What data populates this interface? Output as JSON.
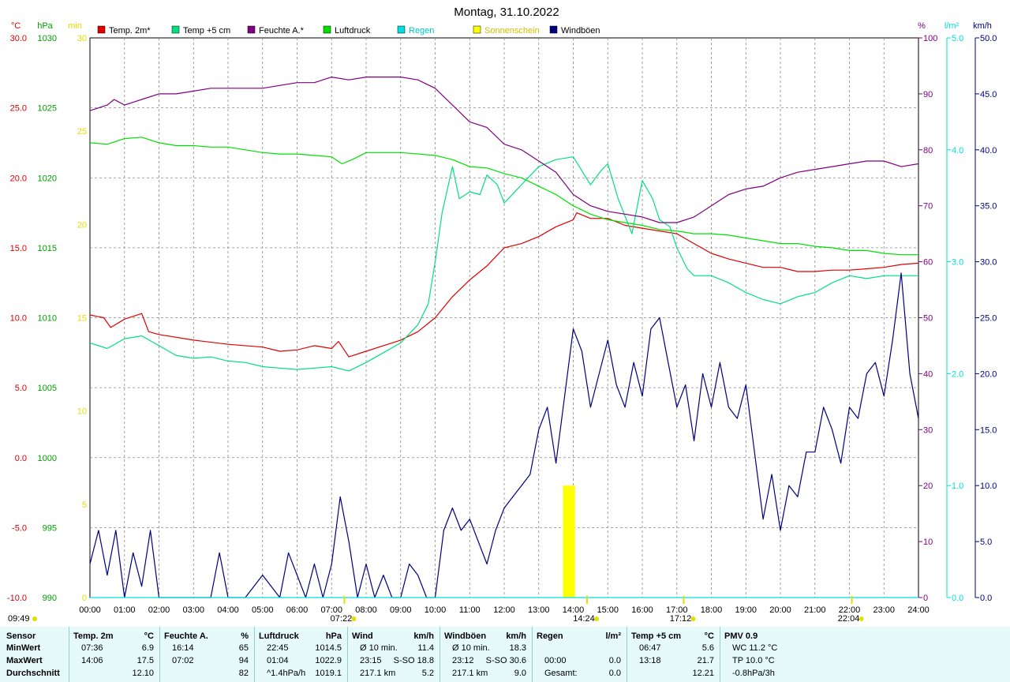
{
  "chart_data": {
    "type": "line",
    "title": "Montag, 31.10.2022",
    "x_ticks": [
      "00:00",
      "01:00",
      "02:00",
      "03:00",
      "04:00",
      "05:00",
      "06:00",
      "07:00",
      "08:00",
      "09:00",
      "10:00",
      "11:00",
      "12:00",
      "13:00",
      "14:00",
      "15:00",
      "16:00",
      "17:00",
      "18:00",
      "19:00",
      "20:00",
      "21:00",
      "22:00",
      "23:00",
      "24:00"
    ],
    "xlim": [
      0,
      24
    ],
    "axes": {
      "temp": {
        "unit": "°C",
        "range": [
          -10,
          30
        ],
        "ticks": [
          "30.0",
          "25.0",
          "20.0",
          "15.0",
          "10.0",
          "5.0",
          "0.0",
          "-5.0",
          "-10.0"
        ],
        "color": "#e00000"
      },
      "pressure": {
        "unit": "hPa",
        "range": [
          990,
          1030
        ],
        "ticks": [
          "1030",
          "1025",
          "1020",
          "1015",
          "1010",
          "1005",
          "1000",
          "995",
          "990"
        ],
        "color": "#00a000"
      },
      "sun": {
        "unit": "min",
        "range": [
          0,
          30
        ],
        "ticks": [
          "30",
          "25",
          "20",
          "15",
          "10",
          "5",
          "0"
        ],
        "color": "#e0e000"
      },
      "humidity": {
        "unit": "%",
        "range": [
          0,
          100
        ],
        "ticks": [
          "100",
          "90",
          "80",
          "70",
          "60",
          "50",
          "40",
          "30",
          "20",
          "10",
          "0"
        ],
        "color": "#800080"
      },
      "rain": {
        "unit": "l/m²",
        "range": [
          0,
          5
        ],
        "ticks": [
          "5.0",
          "4.0",
          "3.0",
          "2.0",
          "1.0",
          "0.0"
        ],
        "color": "#00e0e0"
      },
      "wind": {
        "unit": "km/h",
        "range": [
          0,
          50
        ],
        "ticks": [
          "50.0",
          "45.0",
          "40.0",
          "35.0",
          "30.0",
          "25.0",
          "20.0",
          "15.0",
          "10.0",
          "5.0",
          "0.0"
        ],
        "color": "#000080"
      }
    },
    "legend": [
      {
        "name": "Temp. 2m*",
        "color": "#e00000"
      },
      {
        "name": "Temp +5 cm",
        "color": "#00e080"
      },
      {
        "name": "Feuchte A.*",
        "color": "#800080"
      },
      {
        "name": "Luftdruck",
        "color": "#00e000"
      },
      {
        "name": "Regen",
        "color": "#00e0e0"
      },
      {
        "name": "Sonnenschein",
        "color": "#ffff00"
      },
      {
        "name": "Windböen",
        "color": "#000080"
      }
    ],
    "series": [
      {
        "name": "Temp. 2m*",
        "axis": "temp",
        "color": "#e00000",
        "x": [
          0,
          0.4,
          0.6,
          1.0,
          1.5,
          1.7,
          2.0,
          3.0,
          4.0,
          5.0,
          5.5,
          6.0,
          6.5,
          7.0,
          7.2,
          7.5,
          8.0,
          8.5,
          9.0,
          9.5,
          10.0,
          10.5,
          11.0,
          11.5,
          12.0,
          12.5,
          13.0,
          13.5,
          14.0,
          14.1,
          14.5,
          15.0,
          15.5,
          16.0,
          16.5,
          17.0,
          17.5,
          18.0,
          18.5,
          19.0,
          19.5,
          20.0,
          20.5,
          21.0,
          21.5,
          22.0,
          22.5,
          23.0,
          23.5,
          24.0
        ],
        "y": [
          10.2,
          10.0,
          9.3,
          9.9,
          10.3,
          9.0,
          8.8,
          8.4,
          8.1,
          7.9,
          7.6,
          7.7,
          8.0,
          7.8,
          8.3,
          7.2,
          7.6,
          8.0,
          8.4,
          9.0,
          10.0,
          11.5,
          12.7,
          13.7,
          15.0,
          15.3,
          15.8,
          16.5,
          17.0,
          17.5,
          17.1,
          17.1,
          16.6,
          16.4,
          16.2,
          16.0,
          15.3,
          14.6,
          14.2,
          13.9,
          13.6,
          13.6,
          13.3,
          13.3,
          13.4,
          13.4,
          13.5,
          13.6,
          13.8,
          13.9
        ]
      },
      {
        "name": "Temp +5 cm",
        "axis": "temp",
        "color": "#00e080",
        "x": [
          0,
          0.5,
          1.0,
          1.5,
          2.0,
          2.5,
          3.0,
          3.5,
          4.0,
          4.5,
          5.0,
          5.5,
          6.0,
          6.5,
          7.0,
          7.5,
          8.0,
          8.5,
          9.0,
          9.5,
          9.8,
          10.0,
          10.2,
          10.5,
          10.7,
          11.0,
          11.3,
          11.5,
          11.8,
          12.0,
          12.5,
          13.0,
          13.5,
          14.0,
          14.5,
          14.8,
          15.0,
          15.3,
          15.7,
          16.0,
          16.3,
          16.5,
          16.8,
          17.0,
          17.3,
          17.5,
          18.0,
          18.5,
          19.0,
          19.5,
          20.0,
          20.5,
          21.0,
          21.5,
          22.0,
          22.5,
          23.0,
          23.5,
          24.0
        ],
        "y": [
          8.2,
          7.8,
          8.5,
          8.7,
          8.0,
          7.3,
          7.1,
          7.2,
          6.9,
          6.8,
          6.5,
          6.4,
          6.3,
          6.4,
          6.5,
          6.2,
          6.8,
          7.5,
          8.2,
          9.5,
          11.0,
          14.0,
          17.5,
          20.8,
          18.5,
          19.0,
          18.8,
          20.2,
          19.5,
          18.2,
          19.5,
          20.8,
          21.3,
          21.5,
          19.5,
          20.5,
          21.0,
          18.5,
          16.0,
          19.8,
          18.5,
          17.0,
          16.5,
          15.0,
          13.5,
          13.0,
          13.0,
          12.5,
          11.8,
          11.3,
          11.0,
          11.5,
          11.8,
          12.5,
          13.0,
          12.8,
          13.0,
          13.0,
          13.0
        ]
      },
      {
        "name": "Feuchte A.*",
        "axis": "humidity",
        "color": "#800080",
        "x": [
          0,
          0.5,
          0.7,
          1.0,
          1.5,
          2.0,
          2.5,
          3.0,
          3.5,
          4.0,
          5.0,
          6.0,
          6.5,
          7.0,
          7.5,
          8.0,
          9.0,
          9.5,
          10.0,
          10.5,
          11.0,
          11.5,
          12.0,
          12.5,
          13.0,
          13.5,
          14.0,
          14.5,
          15.0,
          15.5,
          16.0,
          16.5,
          17.0,
          17.5,
          18.0,
          18.5,
          19.0,
          19.5,
          20.0,
          20.5,
          21.0,
          21.5,
          22.0,
          22.5,
          23.0,
          23.5,
          24.0
        ],
        "y": [
          87,
          88,
          89,
          88,
          89,
          90,
          90,
          90.5,
          91,
          91,
          91,
          92,
          92,
          93,
          92.5,
          93,
          93,
          92.5,
          91,
          88,
          85,
          84,
          81,
          80,
          78,
          76,
          72,
          70,
          69,
          68.5,
          68,
          67,
          67,
          68,
          70,
          72,
          73,
          73.5,
          75,
          76,
          76.5,
          77,
          77.5,
          78,
          78,
          77,
          77.5
        ]
      },
      {
        "name": "Luftdruck",
        "axis": "pressure",
        "color": "#00e000",
        "x": [
          0,
          0.5,
          1.0,
          1.5,
          2.0,
          2.5,
          3.0,
          3.5,
          4.0,
          4.5,
          5.0,
          5.5,
          6.0,
          6.5,
          7.0,
          7.3,
          7.6,
          8.0,
          9.0,
          10.0,
          10.5,
          11.0,
          11.5,
          12.0,
          12.5,
          13.0,
          13.5,
          14.0,
          14.5,
          15.0,
          15.5,
          16.0,
          16.5,
          17.0,
          17.5,
          18.0,
          18.5,
          19.0,
          19.5,
          20.0,
          20.5,
          21.0,
          21.5,
          22.0,
          22.5,
          23.0,
          23.5,
          24.0
        ],
        "y": [
          1022.5,
          1022.4,
          1022.8,
          1022.9,
          1022.5,
          1022.3,
          1022.3,
          1022.2,
          1022.2,
          1022.0,
          1021.8,
          1021.7,
          1021.7,
          1021.6,
          1021.5,
          1021.0,
          1021.3,
          1021.8,
          1021.8,
          1021.6,
          1021.3,
          1020.8,
          1020.7,
          1020.3,
          1020.0,
          1019.4,
          1018.8,
          1018.0,
          1017.4,
          1017.0,
          1016.8,
          1016.6,
          1016.3,
          1016.2,
          1016.0,
          1016.0,
          1015.9,
          1015.7,
          1015.5,
          1015.3,
          1015.3,
          1015.1,
          1015.0,
          1014.8,
          1014.8,
          1014.6,
          1014.5,
          1014.5
        ]
      },
      {
        "name": "Windböen",
        "axis": "wind",
        "color": "#000080",
        "x": [
          0,
          0.25,
          0.5,
          0.75,
          1.0,
          1.25,
          1.5,
          1.75,
          2.0,
          2.5,
          3.0,
          3.5,
          3.75,
          4.0,
          4.5,
          5.0,
          5.5,
          5.75,
          6.0,
          6.25,
          6.5,
          6.75,
          7.0,
          7.25,
          7.5,
          7.75,
          8.0,
          8.25,
          8.5,
          8.75,
          9.0,
          9.25,
          9.5,
          9.75,
          10.0,
          10.25,
          10.5,
          10.75,
          11.0,
          11.25,
          11.5,
          11.75,
          12.0,
          12.25,
          12.5,
          12.75,
          13.0,
          13.25,
          13.5,
          13.75,
          14.0,
          14.25,
          14.5,
          14.75,
          15.0,
          15.25,
          15.5,
          15.75,
          16.0,
          16.25,
          16.5,
          16.75,
          17.0,
          17.25,
          17.5,
          17.75,
          18.0,
          18.25,
          18.5,
          18.75,
          19.0,
          19.25,
          19.5,
          19.75,
          20.0,
          20.25,
          20.5,
          20.75,
          21.0,
          21.25,
          21.5,
          21.75,
          22.0,
          22.25,
          22.5,
          22.75,
          23.0,
          23.25,
          23.5,
          23.75,
          24.0
        ],
        "y": [
          3,
          6,
          2,
          6,
          0,
          4,
          1,
          6,
          0,
          0,
          0,
          0,
          4,
          0,
          0,
          2,
          0,
          4,
          2,
          0,
          3,
          0,
          3,
          9,
          5,
          0,
          3,
          0,
          2,
          0,
          0,
          3,
          2,
          0,
          0,
          6,
          8,
          6,
          7,
          5,
          3,
          6,
          8,
          9,
          10,
          11,
          15,
          17,
          12,
          18,
          24,
          22,
          17,
          20,
          23,
          19,
          17,
          21,
          18,
          24,
          25,
          21,
          17,
          19,
          14,
          20,
          17,
          21,
          17,
          16,
          19,
          13,
          7,
          11,
          6,
          10,
          9,
          13,
          13,
          17,
          15,
          12,
          17,
          16,
          20,
          21,
          18,
          23,
          29,
          20,
          16
        ]
      },
      {
        "name": "Regen",
        "axis": "rain",
        "color": "#00e0e0",
        "x": [
          0,
          24
        ],
        "y": [
          0,
          0
        ]
      }
    ],
    "sunshine_bars": [
      {
        "x_start": 13.7,
        "x_end": 14.05,
        "value": 6
      }
    ],
    "bottom_markers": [
      {
        "x": 7.37,
        "label": "07:22",
        "color": "#e0e000"
      },
      {
        "x": 14.4,
        "label": "14:24",
        "color": "#e0e000"
      },
      {
        "x": 17.2,
        "label": "17:12",
        "color": "#e0e000"
      },
      {
        "x": 22.07,
        "label": "22:04",
        "color": "#e0e000"
      }
    ],
    "bottom_left_label": "09:49",
    "grid": true
  },
  "stats": {
    "rows": [
      "Sensor",
      "MinWert",
      "MaxWert",
      "Durchschnitt"
    ],
    "columns": [
      {
        "h1": "Temp. 2m",
        "h2": "°C",
        "cells": [
          [
            "07:36",
            "6.9"
          ],
          [
            "14:06",
            "17.5"
          ],
          [
            "",
            "12.10"
          ]
        ]
      },
      {
        "h1": "Feuchte A.",
        "h2": "%",
        "cells": [
          [
            "16:14",
            "65"
          ],
          [
            "07:02",
            "94"
          ],
          [
            "",
            "82"
          ]
        ]
      },
      {
        "h1": "Luftdruck",
        "h2": "hPa",
        "cells": [
          [
            "22:45",
            "1014.5"
          ],
          [
            "01:04",
            "1022.9"
          ],
          [
            "^1.4hPa/h",
            "1019.1"
          ]
        ]
      },
      {
        "h1": "Wind",
        "h2": "km/h",
        "cells": [
          [
            "Ø 10 min.",
            "11.4"
          ],
          [
            "23:15",
            "S-SO 18.8"
          ],
          [
            "217.1 km",
            "5.2"
          ]
        ]
      },
      {
        "h1": "Windböen",
        "h2": "km/h",
        "cells": [
          [
            "Ø 10 min.",
            "18.3"
          ],
          [
            "23:12",
            "S-SO 30.6"
          ],
          [
            "217.1 km",
            "9.0"
          ]
        ]
      },
      {
        "h1": "Regen",
        "h2": "l/m²",
        "cells": [
          [
            "",
            ""
          ],
          [
            "00:00",
            "0.0"
          ],
          [
            "Gesamt:",
            "0.0"
          ]
        ]
      },
      {
        "h1": "Temp +5 cm",
        "h2": "°C",
        "cells": [
          [
            "06:47",
            "5.6"
          ],
          [
            "13:18",
            "21.7"
          ],
          [
            "",
            "12.21"
          ]
        ]
      },
      {
        "h1": "PMV 0.9",
        "h2": "",
        "cells": [
          [
            "WC 11.2 °C",
            ""
          ],
          [
            "TP 10.0 °C",
            ""
          ],
          [
            "-0.8hPa/3h",
            ""
          ]
        ]
      }
    ]
  }
}
